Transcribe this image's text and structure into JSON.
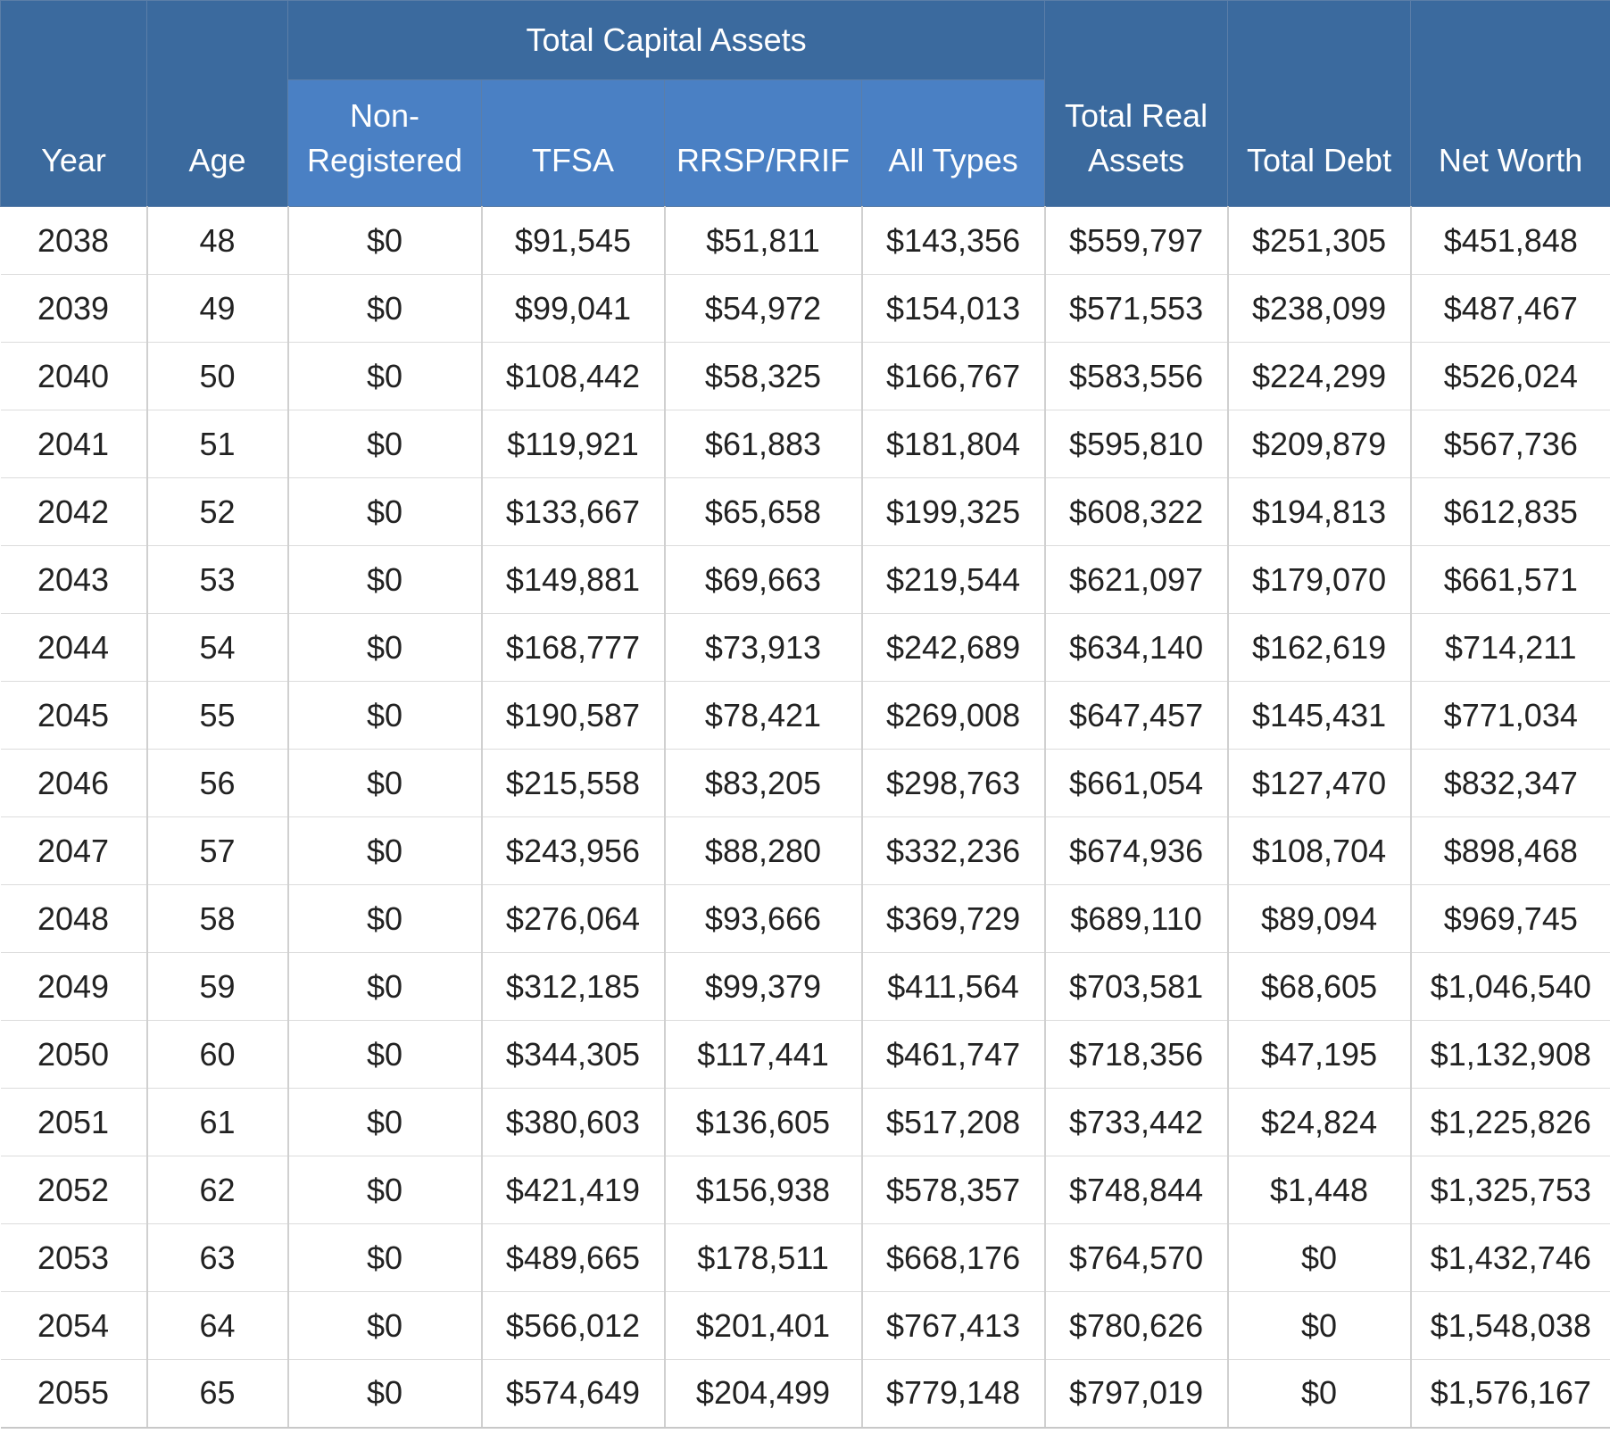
{
  "header": {
    "year": "Year",
    "age": "Age",
    "group": "Total Capital Assets",
    "non_registered": "Non-\nRegistered",
    "tfsa": "TFSA",
    "rrsp": "RRSP/RRIF",
    "all_types": "All Types",
    "real_assets": "Total Real\nAssets",
    "debt": "Total Debt",
    "net_worth": "Net Worth"
  },
  "rows": [
    [
      "2038",
      "48",
      "$0",
      "$91,545",
      "$51,811",
      "$143,356",
      "$559,797",
      "$251,305",
      "$451,848"
    ],
    [
      "2039",
      "49",
      "$0",
      "$99,041",
      "$54,972",
      "$154,013",
      "$571,553",
      "$238,099",
      "$487,467"
    ],
    [
      "2040",
      "50",
      "$0",
      "$108,442",
      "$58,325",
      "$166,767",
      "$583,556",
      "$224,299",
      "$526,024"
    ],
    [
      "2041",
      "51",
      "$0",
      "$119,921",
      "$61,883",
      "$181,804",
      "$595,810",
      "$209,879",
      "$567,736"
    ],
    [
      "2042",
      "52",
      "$0",
      "$133,667",
      "$65,658",
      "$199,325",
      "$608,322",
      "$194,813",
      "$612,835"
    ],
    [
      "2043",
      "53",
      "$0",
      "$149,881",
      "$69,663",
      "$219,544",
      "$621,097",
      "$179,070",
      "$661,571"
    ],
    [
      "2044",
      "54",
      "$0",
      "$168,777",
      "$73,913",
      "$242,689",
      "$634,140",
      "$162,619",
      "$714,211"
    ],
    [
      "2045",
      "55",
      "$0",
      "$190,587",
      "$78,421",
      "$269,008",
      "$647,457",
      "$145,431",
      "$771,034"
    ],
    [
      "2046",
      "56",
      "$0",
      "$215,558",
      "$83,205",
      "$298,763",
      "$661,054",
      "$127,470",
      "$832,347"
    ],
    [
      "2047",
      "57",
      "$0",
      "$243,956",
      "$88,280",
      "$332,236",
      "$674,936",
      "$108,704",
      "$898,468"
    ],
    [
      "2048",
      "58",
      "$0",
      "$276,064",
      "$93,666",
      "$369,729",
      "$689,110",
      "$89,094",
      "$969,745"
    ],
    [
      "2049",
      "59",
      "$0",
      "$312,185",
      "$99,379",
      "$411,564",
      "$703,581",
      "$68,605",
      "$1,046,540"
    ],
    [
      "2050",
      "60",
      "$0",
      "$344,305",
      "$117,441",
      "$461,747",
      "$718,356",
      "$47,195",
      "$1,132,908"
    ],
    [
      "2051",
      "61",
      "$0",
      "$380,603",
      "$136,605",
      "$517,208",
      "$733,442",
      "$24,824",
      "$1,225,826"
    ],
    [
      "2052",
      "62",
      "$0",
      "$421,419",
      "$156,938",
      "$578,357",
      "$748,844",
      "$1,448",
      "$1,325,753"
    ],
    [
      "2053",
      "63",
      "$0",
      "$489,665",
      "$178,511",
      "$668,176",
      "$764,570",
      "$0",
      "$1,432,746"
    ],
    [
      "2054",
      "64",
      "$0",
      "$566,012",
      "$201,401",
      "$767,413",
      "$780,626",
      "$0",
      "$1,548,038"
    ],
    [
      "2055",
      "65",
      "$0",
      "$574,649",
      "$204,499",
      "$779,148",
      "$797,019",
      "$0",
      "$1,576,167"
    ]
  ]
}
